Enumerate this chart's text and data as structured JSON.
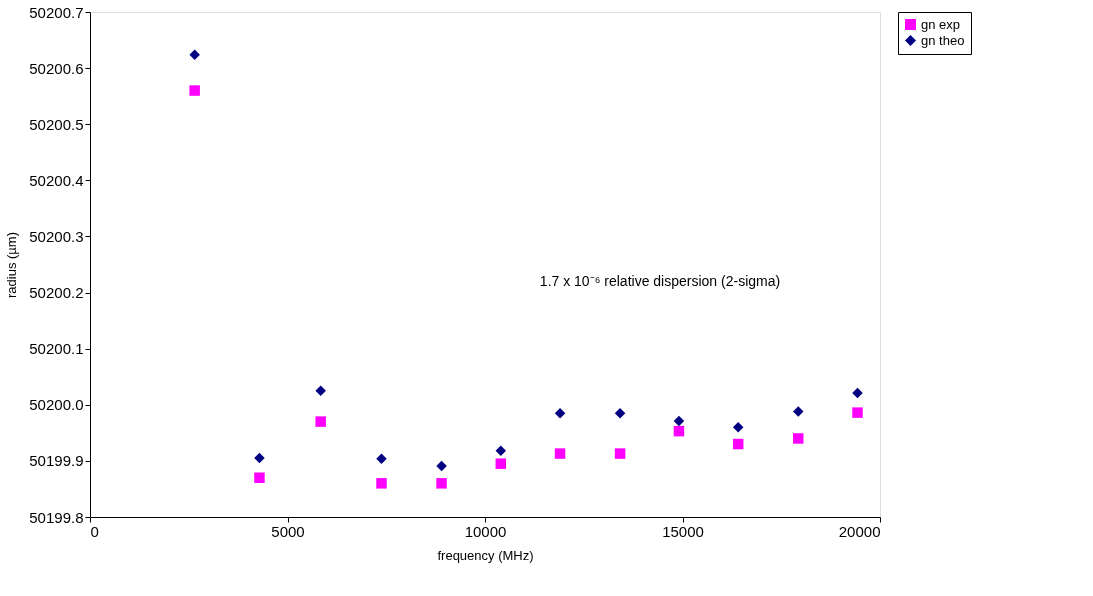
{
  "chart_data": {
    "type": "scatter",
    "xlabel": "frequency (MHz)",
    "ylabel": "radius (µm)",
    "x": [
      2650,
      4290,
      5840,
      7380,
      8900,
      10400,
      11900,
      13420,
      14910,
      16410,
      17930,
      19430
    ],
    "series": [
      {
        "name": "gn exp",
        "color": "#ff00ff",
        "marker": "square",
        "values": [
          50200.56,
          50199.87,
          50199.97,
          50199.86,
          50199.86,
          50199.895,
          50199.913,
          50199.913,
          50199.953,
          50199.93,
          50199.94,
          50199.986
        ]
      },
      {
        "name": "gn theo",
        "color": "#000080",
        "marker": "diamond",
        "values": [
          50200.624,
          50199.905,
          50200.025,
          50199.904,
          50199.891,
          50199.918,
          50199.985,
          50199.985,
          50199.971,
          50199.96,
          50199.988,
          50200.021
        ]
      }
    ],
    "xlim": [
      0,
      20000
    ],
    "xticks": [
      0,
      5000,
      10000,
      15000,
      20000
    ],
    "ylim": [
      50199.8,
      50200.7
    ],
    "yticks": [
      50199.8,
      50199.9,
      {
        "value": 50200,
        "label": "50200.0"
      },
      50200.1,
      50200.2,
      50200.3,
      50200.4,
      50200.5,
      50200.6,
      50200.7
    ],
    "annotations": [
      "1.7 x 10⁻⁶ relative dispersion (2-sigma)"
    ],
    "grid": false,
    "legend": "right"
  }
}
